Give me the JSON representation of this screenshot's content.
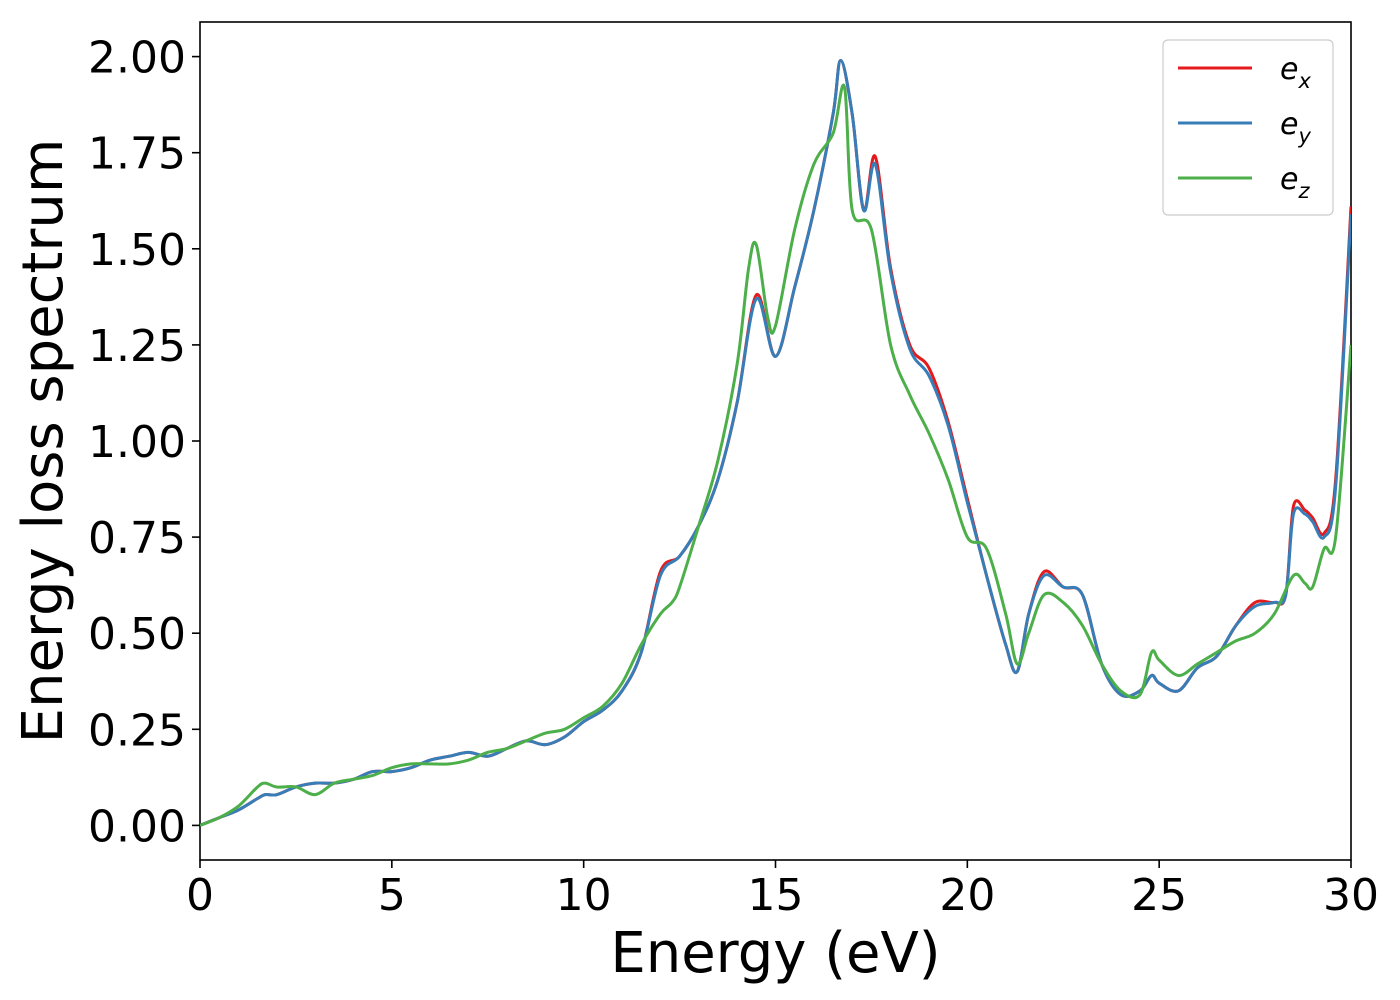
{
  "chart_data": {
    "type": "line",
    "title": "",
    "xlabel": "Energy (eV)",
    "ylabel": "Energy loss spectrum",
    "xlim": [
      0,
      30
    ],
    "ylim": [
      -0.09,
      2.09
    ],
    "xticks": [
      0,
      5,
      10,
      15,
      20,
      25,
      30
    ],
    "xtick_labels": [
      "0",
      "5",
      "10",
      "15",
      "20",
      "25",
      "30"
    ],
    "yticks": [
      0,
      0.25,
      0.5,
      0.75,
      1.0,
      1.25,
      1.5,
      1.75,
      2.0
    ],
    "ytick_labels": [
      "0.00",
      "0.25",
      "0.50",
      "0.75",
      "1.00",
      "1.25",
      "1.50",
      "1.75",
      "2.00"
    ],
    "grid": false,
    "legend_position": "top-right",
    "series": [
      {
        "name": "e_x",
        "label_base": "e",
        "label_sub": "x",
        "color": "#e41a1c",
        "x": [
          0,
          0.5,
          1,
          1.5,
          1.7,
          2,
          2.5,
          3,
          3.5,
          4,
          4.5,
          5,
          5.5,
          6,
          6.5,
          7,
          7.5,
          8,
          8.5,
          9,
          9.5,
          10,
          10.5,
          11,
          11.5,
          12,
          12.5,
          13,
          13.5,
          14,
          14.5,
          15,
          15.5,
          16,
          16.5,
          16.7,
          17,
          17.3,
          17.6,
          18,
          18.5,
          19,
          19.5,
          20,
          20.5,
          21,
          21.3,
          21.6,
          22,
          22.5,
          23,
          23.5,
          24,
          24.5,
          24.8,
          25,
          25.5,
          26,
          26.5,
          27,
          27.5,
          28,
          28.3,
          28.5,
          28.8,
          29,
          29.3,
          29.6,
          30
        ],
        "y": [
          0,
          0.02,
          0.04,
          0.07,
          0.08,
          0.08,
          0.1,
          0.11,
          0.11,
          0.12,
          0.14,
          0.14,
          0.15,
          0.17,
          0.18,
          0.19,
          0.18,
          0.2,
          0.22,
          0.21,
          0.23,
          0.27,
          0.3,
          0.35,
          0.45,
          0.66,
          0.7,
          0.78,
          0.9,
          1.1,
          1.38,
          1.22,
          1.4,
          1.6,
          1.85,
          1.99,
          1.85,
          1.6,
          1.74,
          1.45,
          1.25,
          1.19,
          1.05,
          0.85,
          0.65,
          0.47,
          0.4,
          0.55,
          0.66,
          0.62,
          0.6,
          0.42,
          0.34,
          0.35,
          0.39,
          0.37,
          0.35,
          0.41,
          0.44,
          0.52,
          0.58,
          0.58,
          0.6,
          0.83,
          0.82,
          0.8,
          0.76,
          0.9,
          1.61
        ]
      },
      {
        "name": "e_y",
        "label_base": "e",
        "label_sub": "y",
        "color": "#377eb8",
        "x": [
          0,
          0.5,
          1,
          1.5,
          1.7,
          2,
          2.5,
          3,
          3.5,
          4,
          4.5,
          5,
          5.5,
          6,
          6.5,
          7,
          7.5,
          8,
          8.5,
          9,
          9.5,
          10,
          10.5,
          11,
          11.5,
          12,
          12.5,
          13,
          13.5,
          14,
          14.5,
          15,
          15.5,
          16,
          16.5,
          16.7,
          17,
          17.3,
          17.6,
          18,
          18.5,
          19,
          19.5,
          20,
          20.5,
          21,
          21.3,
          21.6,
          22,
          22.5,
          23,
          23.5,
          24,
          24.5,
          24.8,
          25,
          25.5,
          26,
          26.5,
          27,
          27.5,
          28,
          28.3,
          28.5,
          28.8,
          29,
          29.3,
          29.6,
          30
        ],
        "y": [
          0,
          0.02,
          0.04,
          0.07,
          0.08,
          0.08,
          0.1,
          0.11,
          0.11,
          0.12,
          0.14,
          0.14,
          0.15,
          0.17,
          0.18,
          0.19,
          0.18,
          0.2,
          0.22,
          0.21,
          0.23,
          0.27,
          0.3,
          0.35,
          0.45,
          0.65,
          0.7,
          0.78,
          0.9,
          1.1,
          1.37,
          1.22,
          1.4,
          1.6,
          1.85,
          1.99,
          1.85,
          1.6,
          1.72,
          1.44,
          1.24,
          1.17,
          1.04,
          0.84,
          0.65,
          0.47,
          0.4,
          0.55,
          0.65,
          0.62,
          0.6,
          0.42,
          0.34,
          0.35,
          0.39,
          0.37,
          0.35,
          0.41,
          0.44,
          0.52,
          0.57,
          0.58,
          0.6,
          0.81,
          0.81,
          0.79,
          0.75,
          0.88,
          1.59
        ]
      },
      {
        "name": "e_z",
        "label_base": "e",
        "label_sub": "z",
        "color": "#4daf4a",
        "x": [
          0,
          0.5,
          1,
          1.5,
          1.7,
          2,
          2.5,
          3,
          3.5,
          4,
          4.5,
          5,
          5.5,
          6,
          6.5,
          7,
          7.5,
          8,
          8.5,
          9,
          9.5,
          10,
          10.5,
          11,
          11.5,
          12,
          12.3,
          12.5,
          13,
          13.5,
          14,
          14.3,
          14.5,
          14.8,
          15,
          15.5,
          16,
          16.5,
          16.8,
          17,
          17.5,
          18,
          18.5,
          19,
          19.5,
          20,
          20.5,
          21,
          21.3,
          21.6,
          22,
          22.5,
          23,
          23.5,
          24,
          24.5,
          24.8,
          25,
          25.5,
          26,
          26.5,
          27,
          27.5,
          28,
          28.5,
          28.8,
          29,
          29.3,
          29.6,
          30
        ],
        "y": [
          0,
          0.02,
          0.05,
          0.1,
          0.11,
          0.1,
          0.1,
          0.08,
          0.11,
          0.12,
          0.13,
          0.15,
          0.16,
          0.16,
          0.16,
          0.17,
          0.19,
          0.2,
          0.22,
          0.24,
          0.25,
          0.28,
          0.31,
          0.37,
          0.47,
          0.55,
          0.58,
          0.62,
          0.78,
          0.95,
          1.2,
          1.45,
          1.51,
          1.32,
          1.3,
          1.55,
          1.72,
          1.8,
          1.92,
          1.6,
          1.55,
          1.25,
          1.12,
          1.02,
          0.9,
          0.75,
          0.72,
          0.55,
          0.42,
          0.5,
          0.6,
          0.58,
          0.52,
          0.42,
          0.35,
          0.34,
          0.45,
          0.43,
          0.39,
          0.42,
          0.45,
          0.48,
          0.5,
          0.55,
          0.65,
          0.63,
          0.62,
          0.72,
          0.75,
          1.25
        ]
      }
    ]
  }
}
